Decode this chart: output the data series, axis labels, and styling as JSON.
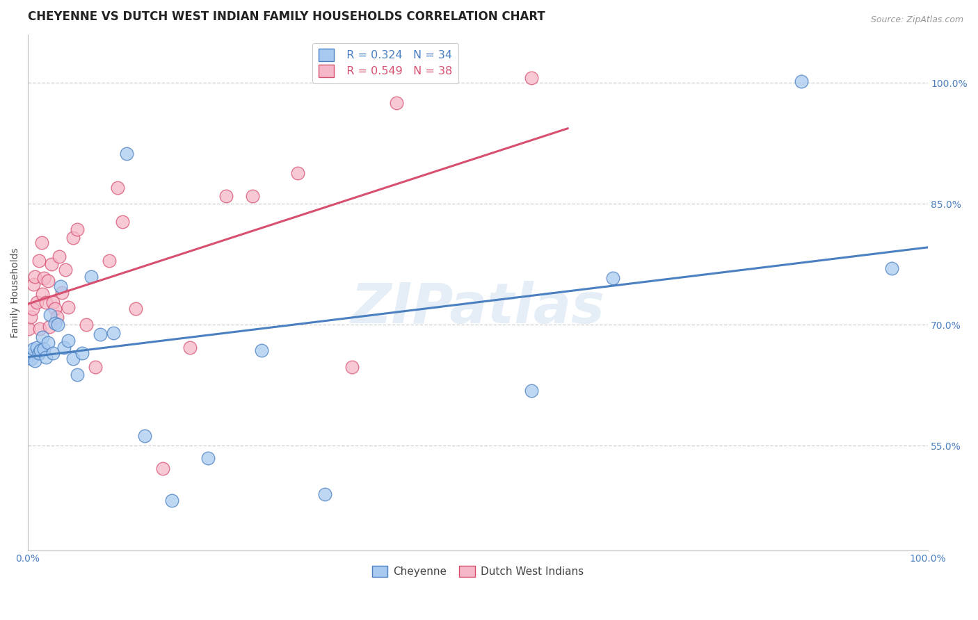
{
  "title": "CHEYENNE VS DUTCH WEST INDIAN FAMILY HOUSEHOLDS CORRELATION CHART",
  "source": "Source: ZipAtlas.com",
  "ylabel": "Family Households",
  "watermark": "ZIPatlas",
  "xlim": [
    0.0,
    1.0
  ],
  "ylim": [
    0.42,
    1.06
  ],
  "xticks": [
    0.0,
    0.2,
    0.4,
    0.6,
    0.8,
    1.0
  ],
  "xticklabels": [
    "0.0%",
    "",
    "",
    "",
    "",
    "100.0%"
  ],
  "ytick_positions": [
    0.55,
    0.7,
    0.85,
    1.0
  ],
  "ytick_labels": [
    "55.0%",
    "70.0%",
    "85.0%",
    "100.0%"
  ],
  "blue_color": "#a8caf0",
  "pink_color": "#f5b8c8",
  "blue_line_color": "#4a7fc0",
  "pink_line_color": "#d85070",
  "legend_R_blue": "R = 0.324",
  "legend_N_blue": "N = 34",
  "legend_R_pink": "R = 0.549",
  "legend_N_pink": "N = 38",
  "cheyenne_x": [
    0.002,
    0.004,
    0.006,
    0.008,
    0.01,
    0.012,
    0.014,
    0.016,
    0.018,
    0.02,
    0.022,
    0.025,
    0.028,
    0.03,
    0.033,
    0.036,
    0.04,
    0.045,
    0.05,
    0.055,
    0.06,
    0.07,
    0.08,
    0.095,
    0.11,
    0.13,
    0.16,
    0.2,
    0.26,
    0.33,
    0.56,
    0.65,
    0.86,
    0.96
  ],
  "cheyenne_y": [
    0.662,
    0.658,
    0.67,
    0.655,
    0.672,
    0.665,
    0.668,
    0.685,
    0.67,
    0.66,
    0.678,
    0.712,
    0.665,
    0.702,
    0.7,
    0.748,
    0.672,
    0.68,
    0.658,
    0.638,
    0.665,
    0.76,
    0.688,
    0.69,
    0.912,
    0.562,
    0.482,
    0.535,
    0.668,
    0.49,
    0.618,
    0.758,
    1.002,
    0.77
  ],
  "dutch_x": [
    0.001,
    0.003,
    0.005,
    0.006,
    0.008,
    0.01,
    0.012,
    0.013,
    0.015,
    0.016,
    0.018,
    0.02,
    0.022,
    0.024,
    0.026,
    0.028,
    0.03,
    0.032,
    0.035,
    0.038,
    0.042,
    0.045,
    0.05,
    0.055,
    0.065,
    0.075,
    0.09,
    0.1,
    0.105,
    0.12,
    0.15,
    0.18,
    0.22,
    0.25,
    0.3,
    0.36,
    0.41,
    0.56
  ],
  "dutch_y": [
    0.695,
    0.71,
    0.72,
    0.75,
    0.76,
    0.728,
    0.78,
    0.695,
    0.802,
    0.738,
    0.758,
    0.728,
    0.755,
    0.698,
    0.775,
    0.728,
    0.72,
    0.71,
    0.785,
    0.74,
    0.768,
    0.722,
    0.808,
    0.818,
    0.7,
    0.648,
    0.78,
    0.87,
    0.828,
    0.72,
    0.522,
    0.672,
    0.86,
    0.86,
    0.888,
    0.648,
    0.975,
    1.006
  ],
  "grid_color": "#cccccc",
  "title_fontsize": 12,
  "axis_fontsize": 10,
  "tick_fontsize": 10,
  "source_fontsize": 9
}
